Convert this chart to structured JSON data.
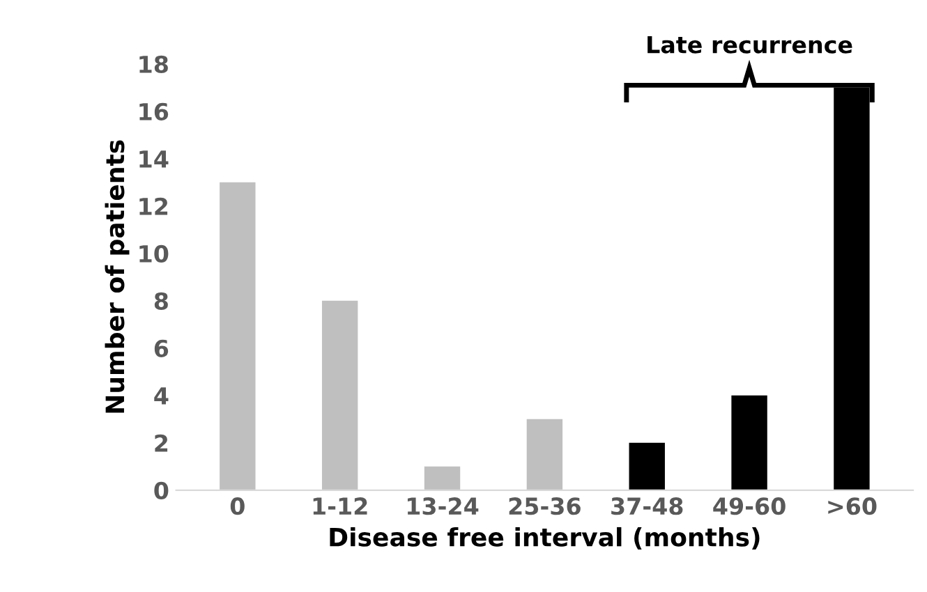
{
  "chart_data": {
    "type": "bar",
    "xlabel": "Disease free interval (months)",
    "ylabel": "Number of patients",
    "categories": [
      "0",
      "1-12",
      "13-24",
      "25-36",
      "37-48",
      "49-60",
      ">60"
    ],
    "values": [
      13,
      8,
      1,
      3,
      2,
      4,
      17
    ],
    "colors": [
      "#bfbfbf",
      "#bfbfbf",
      "#bfbfbf",
      "#bfbfbf",
      "#000000",
      "#000000",
      "#000000"
    ],
    "ylim": [
      0,
      18
    ],
    "yticks": [
      0,
      2,
      4,
      6,
      8,
      10,
      12,
      14,
      16,
      18
    ],
    "annotations": [
      "Late recurrence"
    ],
    "grid": false,
    "legend": false
  }
}
